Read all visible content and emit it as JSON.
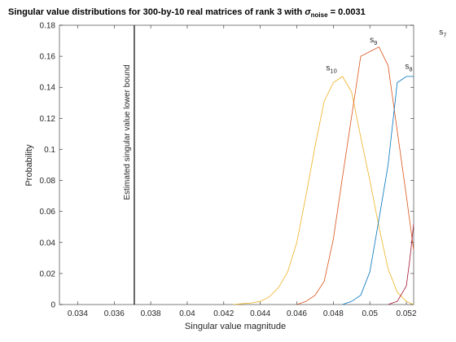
{
  "chart_data": {
    "type": "line",
    "title": {
      "prefix": "Singular value distributions for 300-by-10 real matrices of rank 3 with ",
      "sigma": "σ",
      "sigma_sub": "noise",
      "suffix": " = 0.0031"
    },
    "xlabel": "Singular value magnitude",
    "ylabel": "Probability",
    "xlim": [
      0.033,
      0.0524
    ],
    "ylim": [
      0,
      0.18
    ],
    "xticks": [
      0.034,
      0.036,
      0.038,
      0.04,
      0.042,
      0.044,
      0.046,
      0.048,
      0.05,
      0.052
    ],
    "yticks": [
      0,
      0.02,
      0.04,
      0.06,
      0.08,
      0.1,
      0.12,
      0.14,
      0.16,
      0.18
    ],
    "grid": false,
    "vline": {
      "x": 0.0371,
      "label": "Estimated singular value lower bound",
      "color": "#000000"
    },
    "series": [
      {
        "name": "s",
        "sub": "10",
        "color": "#EDB120",
        "label_at": [
          0.0479,
          0.151
        ],
        "x": [
          0.0425,
          0.043,
          0.0435,
          0.044,
          0.0445,
          0.045,
          0.0455,
          0.046,
          0.0465,
          0.047,
          0.0475,
          0.048,
          0.0485,
          0.049,
          0.0495,
          0.05,
          0.0505,
          0.051,
          0.0515,
          0.052,
          0.0524
        ],
        "values": [
          0.0,
          0.0005,
          0.001,
          0.002,
          0.005,
          0.011,
          0.021,
          0.04,
          0.07,
          0.102,
          0.131,
          0.143,
          0.147,
          0.137,
          0.108,
          0.08,
          0.05,
          0.023,
          0.008,
          0.002,
          0.0
        ]
      },
      {
        "name": "s",
        "sub": "9",
        "color": "#D95319",
        "label_at": [
          0.0502,
          0.169
        ],
        "x": [
          0.046,
          0.0465,
          0.047,
          0.0475,
          0.048,
          0.0485,
          0.049,
          0.0495,
          0.05,
          0.0505,
          0.051,
          0.0515,
          0.052,
          0.0524
        ],
        "values": [
          0.0,
          0.002,
          0.006,
          0.015,
          0.042,
          0.082,
          0.121,
          0.16,
          0.163,
          0.166,
          0.154,
          0.112,
          0.07,
          0.035
        ]
      },
      {
        "name": "s",
        "sub": "8",
        "color": "#0072BD",
        "label_at": [
          0.05213,
          0.152
        ],
        "x": [
          0.0485,
          0.049,
          0.0495,
          0.05,
          0.0505,
          0.051,
          0.0515,
          0.052,
          0.0524
        ],
        "values": [
          0.0,
          0.002,
          0.006,
          0.021,
          0.055,
          0.09,
          0.143,
          0.147,
          0.147
        ]
      },
      {
        "name": "s",
        "sub": "7",
        "color": "#A2142F",
        "label_at": [
          0.054,
          0.174
        ],
        "x": [
          0.051,
          0.0515,
          0.052,
          0.0522,
          0.0524
        ],
        "values": [
          0.0,
          0.002,
          0.012,
          0.03,
          0.052
        ]
      }
    ]
  }
}
